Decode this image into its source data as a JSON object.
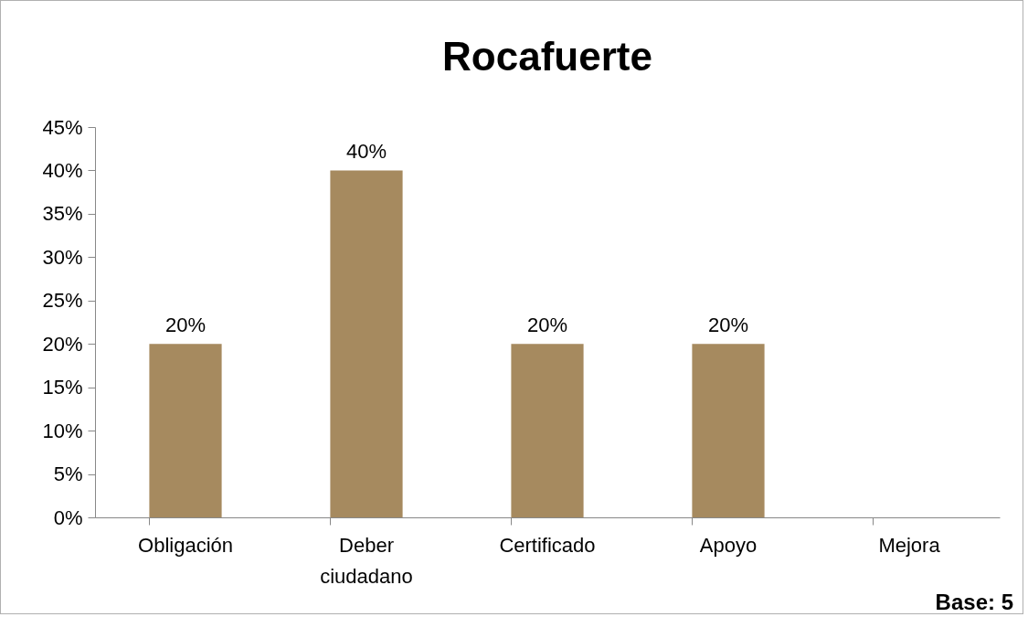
{
  "chart_data": {
    "type": "bar",
    "title": "Rocafuerte",
    "categories": [
      "Obligación",
      "Deber ciudadano",
      "Certificado",
      "Apoyo",
      "Mejora"
    ],
    "values": [
      20,
      40,
      20,
      20,
      0
    ],
    "value_labels": [
      "20%",
      "40%",
      "20%",
      "20%",
      null
    ],
    "color": "#a68a5f",
    "ylim": [
      0,
      45
    ],
    "yticks": [
      {
        "value": 0,
        "label": "0%"
      },
      {
        "value": 5,
        "label": "5%"
      },
      {
        "value": 10,
        "label": "10%"
      },
      {
        "value": 15,
        "label": "15%"
      },
      {
        "value": 20,
        "label": "20%"
      },
      {
        "value": 25,
        "label": "25%"
      },
      {
        "value": 30,
        "label": "30%"
      },
      {
        "value": 35,
        "label": "35%"
      },
      {
        "value": 40,
        "label": "40%"
      },
      {
        "value": 45,
        "label": "45%"
      }
    ],
    "grid": false,
    "annotations": [
      "Base: 5"
    ]
  }
}
